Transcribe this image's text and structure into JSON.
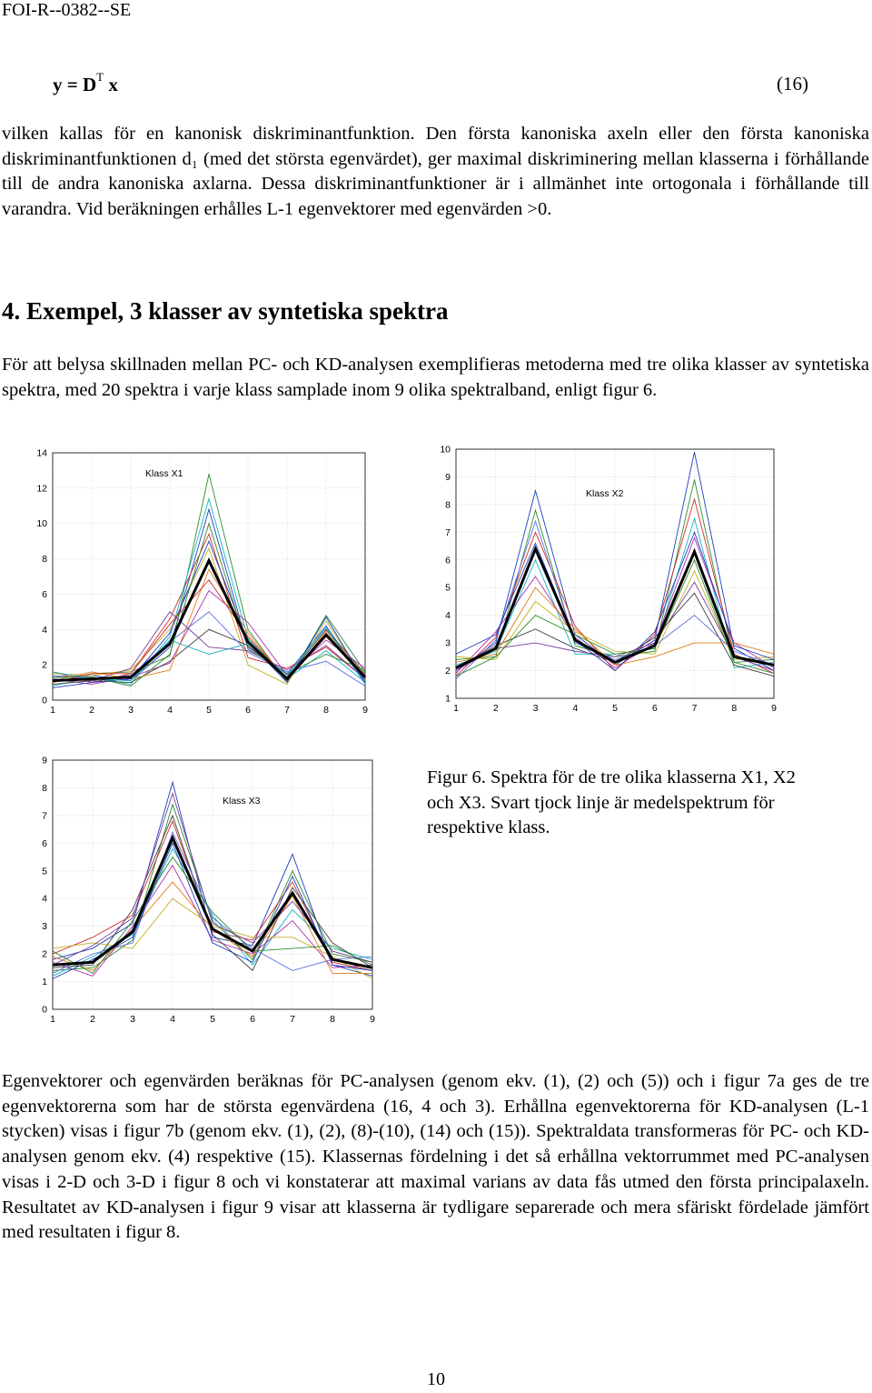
{
  "header": "FOI-R--0382--SE",
  "equation": {
    "lhs": "y = D",
    "sup": "T",
    "rhs": " x",
    "number": "(16)"
  },
  "p1": "vilken kallas för en kanonisk diskriminantfunktion. Den första kanoniska axeln eller den första kanoniska diskriminantfunktionen d₁ (med det största egenvärdet), ger maximal diskriminering mellan klasserna i förhållande till de andra kanoniska axlarna. Dessa diskriminantfunktioner är i allmänhet inte ortogonala i förhållande till varandra. Vid beräkningen erhålles L-1 egenvektorer med egenvärden >0.",
  "section_title": "4.  Exempel, 3 klasser av syntetiska spektra",
  "p2": "För att belysa skillnaden mellan PC- och KD-analysen exemplifieras metoderna med tre olika klasser av syntetiska spektra, med 20 spektra i varje klass samplade inom 9 olika spektralband, enligt figur 6.",
  "caption": "Figur 6. Spektra för de tre olika klasserna X1, X2 och X3. Svart tjock linje är medelspektrum för respektive klass.",
  "p3": "Egenvektorer och egenvärden beräknas för PC-analysen (genom ekv. (1), (2) och (5)) och i figur 7a ges de tre egenvektorerna som har de största egenvärdena (16, 4 och 3). Erhållna egenvektorerna för KD-analysen (L-1 stycken) visas i figur 7b (genom ekv. (1), (2), (8)-(10), (14) och (15)). Spektraldata transformeras för PC- och KD-analysen genom ekv. (4) respektive (15). Klassernas fördelning i det så erhållna vektorrummet med PC-analysen visas i 2-D och 3-D i figur 8 och vi konstaterar att maximal varians av data fås utmed den första principalaxeln. Resultatet av KD-analysen i figur 9 visar att klasserna är tydligare separerade och mera sfäriskt fördelade jämfört med resultaten i figur 8.",
  "page_number": "10",
  "colors": [
    "#1f3fbf",
    "#2e8b2e",
    "#d12a2a",
    "#16b3c2",
    "#b030b0",
    "#c0b020",
    "#404040",
    "#5a6ee0",
    "#e07c1a",
    "#7a3f9f"
  ],
  "chart_data": [
    {
      "type": "line",
      "title": "Klass X1",
      "xlim": [
        1,
        9
      ],
      "ylim": [
        0,
        14
      ],
      "xticks": [
        1,
        2,
        3,
        4,
        5,
        6,
        7,
        8,
        9
      ],
      "yticks": [
        0,
        2,
        4,
        6,
        8,
        10,
        12,
        14
      ],
      "mean": [
        1.1,
        1.2,
        1.3,
        3.2,
        7.9,
        3.3,
        1.2,
        3.7,
        1.3
      ],
      "series": [
        [
          1.3,
          1.4,
          1.1,
          3.0,
          10.8,
          3.0,
          1.5,
          4.2,
          1.0
        ],
        [
          1.0,
          1.5,
          1.6,
          2.5,
          12.8,
          4.0,
          1.0,
          4.8,
          1.6
        ],
        [
          1.6,
          1.0,
          1.5,
          4.6,
          9.4,
          2.4,
          1.8,
          3.0,
          1.2
        ],
        [
          0.8,
          1.3,
          0.9,
          3.6,
          11.4,
          3.5,
          1.2,
          2.8,
          1.0
        ],
        [
          1.2,
          0.9,
          1.3,
          2.1,
          6.2,
          4.4,
          1.4,
          3.4,
          1.8
        ],
        [
          1.5,
          1.4,
          1.7,
          4.0,
          8.6,
          2.0,
          0.9,
          4.5,
          1.1
        ],
        [
          0.9,
          1.1,
          1.0,
          2.2,
          4.0,
          3.1,
          1.3,
          4.0,
          1.5
        ],
        [
          1.4,
          1.2,
          1.4,
          3.3,
          5.0,
          2.7,
          1.6,
          2.2,
          0.8
        ],
        [
          1.1,
          1.6,
          1.2,
          1.7,
          7.4,
          3.8,
          1.1,
          3.9,
          1.4
        ],
        [
          1.2,
          1.1,
          1.8,
          5.0,
          3.0,
          2.8,
          1.7,
          3.1,
          1.2
        ],
        [
          0.7,
          1.0,
          1.2,
          3.8,
          9.0,
          3.3,
          1.0,
          4.7,
          1.0
        ],
        [
          1.3,
          1.3,
          0.8,
          2.6,
          10.0,
          2.9,
          1.5,
          2.6,
          1.7
        ],
        [
          1.0,
          1.5,
          1.5,
          4.3,
          6.8,
          3.6,
          1.2,
          3.6,
          1.3
        ],
        [
          1.6,
          1.2,
          1.1,
          3.4,
          2.6,
          3.2,
          1.4,
          4.1,
          0.9
        ]
      ]
    },
    {
      "type": "line",
      "title": "Klass X2",
      "xlim": [
        1,
        9
      ],
      "ylim": [
        1,
        10
      ],
      "xticks": [
        1,
        2,
        3,
        4,
        5,
        6,
        7,
        8,
        9
      ],
      "yticks": [
        1,
        2,
        3,
        4,
        5,
        6,
        7,
        8,
        9,
        10
      ],
      "mean": [
        2.1,
        2.8,
        6.4,
        3.1,
        2.3,
        2.9,
        6.3,
        2.5,
        2.2
      ],
      "series": [
        [
          2.0,
          3.0,
          8.5,
          3.3,
          2.2,
          3.1,
          9.9,
          2.8,
          2.0
        ],
        [
          2.4,
          2.5,
          7.8,
          2.9,
          2.5,
          2.7,
          8.9,
          2.3,
          2.4
        ],
        [
          1.8,
          3.2,
          7.0,
          3.6,
          2.0,
          3.3,
          8.2,
          2.6,
          1.9
        ],
        [
          2.2,
          2.7,
          6.0,
          2.6,
          2.6,
          2.8,
          7.5,
          2.1,
          2.3
        ],
        [
          1.9,
          3.4,
          5.4,
          3.2,
          2.1,
          3.0,
          6.8,
          3.0,
          2.1
        ],
        [
          2.5,
          2.4,
          4.5,
          3.4,
          2.7,
          2.6,
          5.6,
          2.4,
          2.5
        ],
        [
          2.1,
          2.9,
          3.5,
          2.8,
          2.3,
          3.2,
          4.8,
          2.2,
          1.8
        ],
        [
          1.7,
          3.1,
          7.4,
          3.0,
          2.4,
          2.9,
          4.0,
          2.7,
          2.2
        ],
        [
          2.3,
          2.6,
          5.0,
          3.5,
          2.2,
          2.5,
          3.0,
          3.0,
          2.6
        ],
        [
          2.0,
          2.8,
          3.0,
          2.7,
          2.5,
          3.0,
          5.2,
          2.5,
          2.0
        ],
        [
          2.6,
          3.3,
          6.6,
          3.1,
          2.0,
          3.4,
          7.0,
          2.9,
          2.4
        ],
        [
          1.8,
          2.5,
          4.0,
          3.3,
          2.6,
          2.8,
          6.0,
          2.3,
          1.9
        ]
      ]
    },
    {
      "type": "line",
      "title": "Klass X3",
      "xlim": [
        1,
        9
      ],
      "ylim": [
        0,
        9
      ],
      "xticks": [
        1,
        2,
        3,
        4,
        5,
        6,
        7,
        8,
        9
      ],
      "yticks": [
        0,
        1,
        2,
        3,
        4,
        5,
        6,
        7,
        8,
        9
      ],
      "mean": [
        1.6,
        1.7,
        2.8,
        6.2,
        2.9,
        2.1,
        4.2,
        1.8,
        1.5
      ],
      "series": [
        [
          1.8,
          2.2,
          3.1,
          8.2,
          2.6,
          2.3,
          5.6,
          1.6,
          1.2
        ],
        [
          1.4,
          1.5,
          2.5,
          7.4,
          3.2,
          1.8,
          5.0,
          2.0,
          1.7
        ],
        [
          2.0,
          2.6,
          3.4,
          6.8,
          2.8,
          2.5,
          4.6,
          1.7,
          1.4
        ],
        [
          1.2,
          1.9,
          2.7,
          5.8,
          3.4,
          1.6,
          3.6,
          2.2,
          1.8
        ],
        [
          1.7,
          1.2,
          3.0,
          5.2,
          2.5,
          2.0,
          3.2,
          1.5,
          1.6
        ],
        [
          2.2,
          2.4,
          2.2,
          4.0,
          3.0,
          2.6,
          2.6,
          1.9,
          1.1
        ],
        [
          1.5,
          1.6,
          3.6,
          7.0,
          2.7,
          1.4,
          4.4,
          2.4,
          1.5
        ],
        [
          1.3,
          2.0,
          2.4,
          6.4,
          3.3,
          2.2,
          1.4,
          1.8,
          1.9
        ],
        [
          1.9,
          1.4,
          2.9,
          4.6,
          2.9,
          1.9,
          4.1,
          1.3,
          1.3
        ],
        [
          1.6,
          2.3,
          3.3,
          7.8,
          3.1,
          2.4,
          3.9,
          2.1,
          1.7
        ],
        [
          1.1,
          1.8,
          2.6,
          6.0,
          2.4,
          1.7,
          4.8,
          1.6,
          1.4
        ],
        [
          2.1,
          1.3,
          3.2,
          5.5,
          3.5,
          2.1,
          2.2,
          2.3,
          1.6
        ]
      ]
    }
  ]
}
